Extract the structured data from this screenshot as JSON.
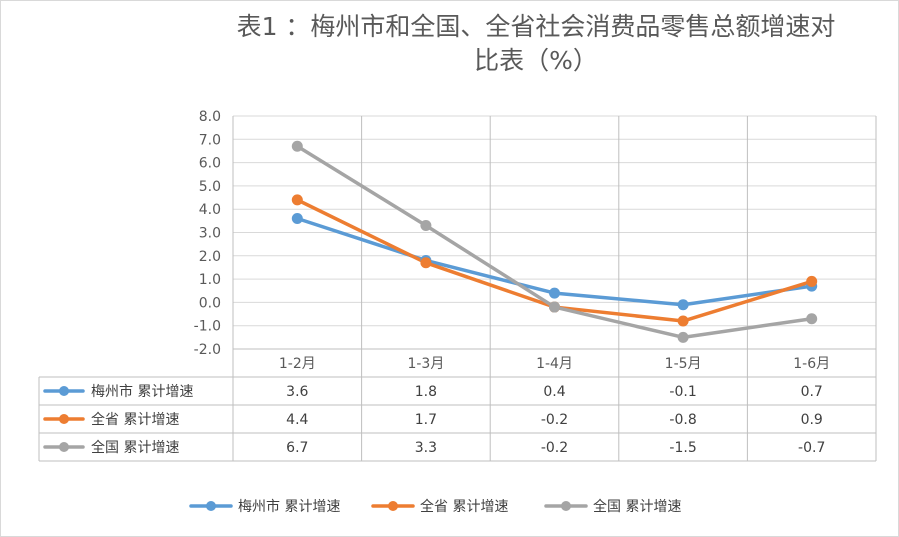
{
  "chart_data": {
    "type": "line",
    "title_line1": "表1 ：梅州市和全国、全省社会消费品零售总额增速对",
    "title_line2": "比表（%）",
    "categories": [
      "1-2月",
      "1-3月",
      "1-4月",
      "1-5月",
      "1-6月"
    ],
    "ylim": [
      -2.0,
      8.0
    ],
    "yticks": [
      -2.0,
      -1.0,
      0.0,
      1.0,
      2.0,
      3.0,
      4.0,
      5.0,
      6.0,
      7.0,
      8.0
    ],
    "grid": true,
    "legend_position": "bottom",
    "series": [
      {
        "name": "梅州市 累计增速",
        "color": "#5b9bd5",
        "values": [
          3.6,
          1.8,
          0.4,
          -0.1,
          0.7
        ]
      },
      {
        "name": "全省 累计增速",
        "color": "#ed7d31",
        "values": [
          4.4,
          1.7,
          -0.2,
          -0.8,
          0.9
        ]
      },
      {
        "name": "全国 累计增速",
        "color": "#a5a5a5",
        "values": [
          6.7,
          3.3,
          -0.2,
          -1.5,
          -0.7
        ]
      }
    ]
  }
}
